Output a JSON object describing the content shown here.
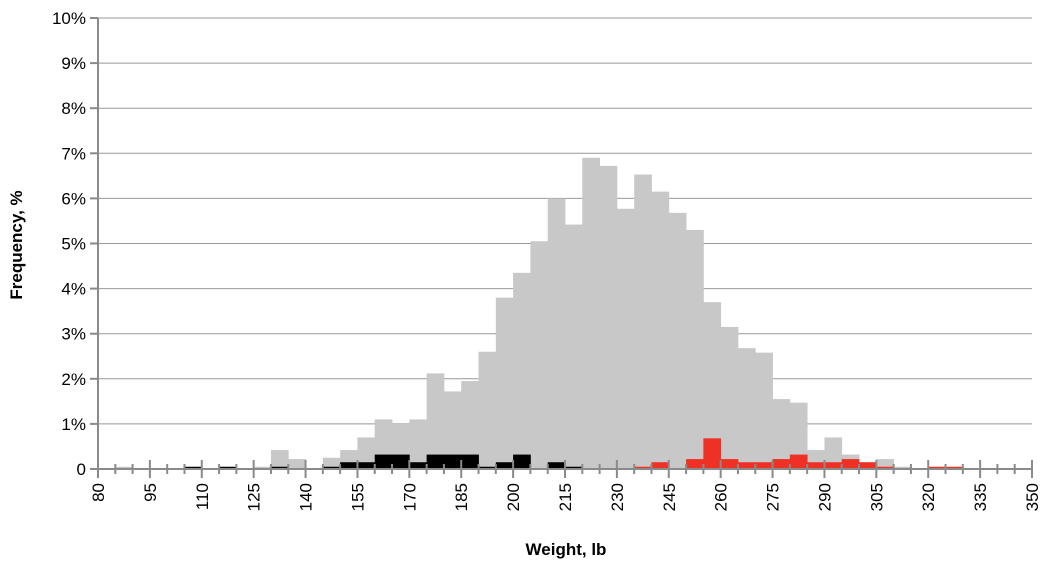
{
  "chart_data": {
    "type": "bar",
    "xlabel": "Weight, lb",
    "ylabel": "Frequency, %",
    "xlim": [
      80,
      350
    ],
    "ylim": [
      0,
      10
    ],
    "x_ticks": [
      "80",
      "95",
      "110",
      "125",
      "140",
      "155",
      "170",
      "185",
      "200",
      "215",
      "230",
      "245",
      "260",
      "275",
      "290",
      "305",
      "320",
      "335",
      "350"
    ],
    "y_ticks": [
      "0",
      "1%",
      "2%",
      "3%",
      "4%",
      "5%",
      "6%",
      "7%",
      "8%",
      "9%",
      "10%"
    ],
    "grid": true,
    "bin_width": 5,
    "colors": {
      "gray": "#c8c8c8",
      "black": "#000000",
      "red": "#ee3124",
      "grid": "#999999",
      "axis": "#8a8a8a"
    },
    "series": [
      {
        "color": "gray",
        "x": [
          85,
          90,
          95,
          100,
          105,
          110,
          115,
          120,
          125,
          130,
          135,
          140,
          145,
          150,
          155,
          160,
          165,
          170,
          175,
          180,
          185,
          190,
          195,
          200,
          205,
          210,
          215,
          220,
          225,
          230,
          235,
          240,
          245,
          250,
          255,
          260,
          265,
          270,
          275,
          280,
          285,
          290,
          295,
          300,
          305,
          310,
          315,
          320,
          325,
          330,
          335,
          340,
          345
        ],
        "values": [
          0.05,
          0,
          0,
          0,
          0,
          0,
          0,
          0,
          0.05,
          0.42,
          0.22,
          0,
          0.25,
          0.42,
          0.7,
          1.1,
          1.0,
          1.1,
          2.12,
          1.72,
          1.95,
          2.6,
          3.8,
          4.35,
          5.05,
          6.0,
          5.42,
          6.9,
          6.72,
          5.77,
          6.53,
          6.15,
          5.68,
          5.3,
          3.7,
          3.15,
          2.68,
          2.58,
          1.55,
          1.47,
          0.42,
          0.7,
          0.32,
          0.15,
          0.22,
          0.05,
          0,
          0,
          0,
          0,
          0,
          0,
          0
        ]
      },
      {
        "color": "black",
        "x": [
          105,
          115,
          130,
          145,
          150,
          155,
          160,
          165,
          170,
          175,
          180,
          185,
          190,
          195,
          200,
          210,
          215
        ],
        "values": [
          0.05,
          0.05,
          0.05,
          0.05,
          0.15,
          0.15,
          0.32,
          0.32,
          0.15,
          0.32,
          0.32,
          0.32,
          0.05,
          0.15,
          0.32,
          0.15,
          0.05
        ]
      },
      {
        "color": "red",
        "x": [
          235,
          240,
          250,
          255,
          260,
          265,
          270,
          275,
          280,
          285,
          290,
          295,
          300,
          305,
          320,
          325
        ],
        "values": [
          0.05,
          0.15,
          0.22,
          0.68,
          0.22,
          0.15,
          0.15,
          0.22,
          0.32,
          0.15,
          0.15,
          0.22,
          0.15,
          0.05,
          0.05,
          0.05
        ]
      }
    ]
  }
}
